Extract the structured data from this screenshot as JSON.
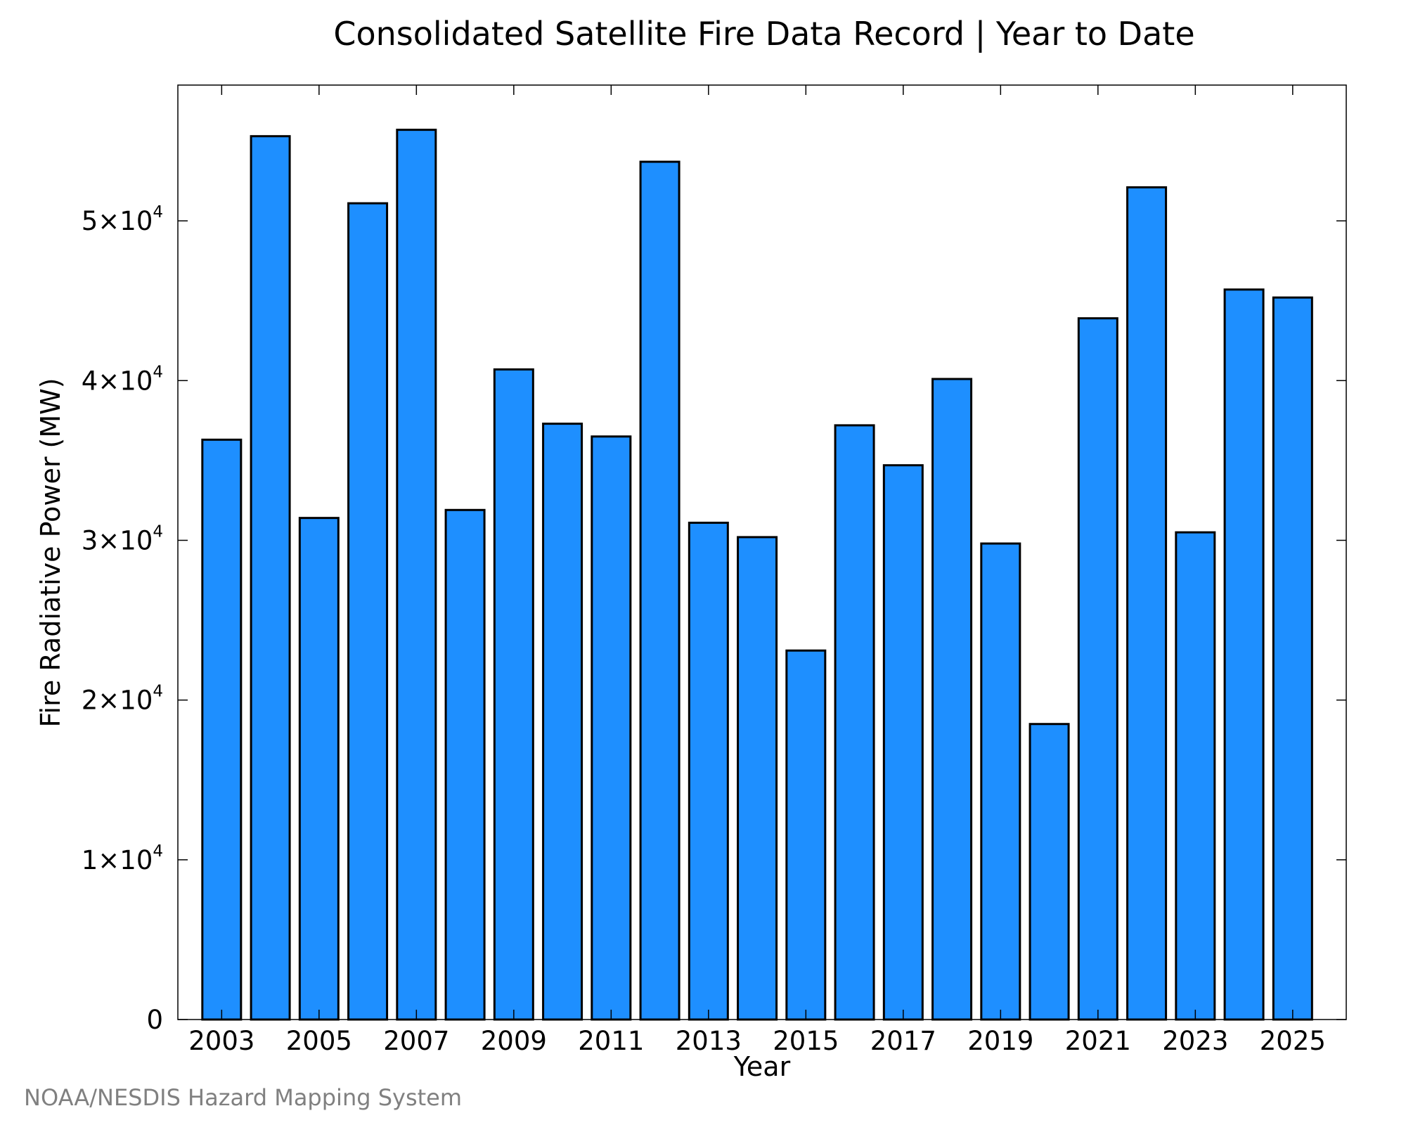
{
  "chart_data": {
    "type": "bar",
    "title": "Consolidated Satellite Fire Data Record | Year to Date",
    "xlabel": "Year",
    "ylabel": "Fire Radiative Power (MW)",
    "ylim": [
      0,
      58500
    ],
    "xlim": [
      2002.1,
      2026.1
    ],
    "grid": false,
    "bar_color": "#1E8FFF",
    "bar_edge_color": "#000000",
    "x": [
      2003,
      2004,
      2005,
      2006,
      2007,
      2008,
      2009,
      2010,
      2011,
      2012,
      2013,
      2014,
      2015,
      2016,
      2017,
      2018,
      2019,
      2020,
      2021,
      2022,
      2023,
      2024,
      2025
    ],
    "values": [
      36300,
      55300,
      31400,
      51100,
      55700,
      31900,
      40700,
      37300,
      36500,
      53700,
      31100,
      30200,
      23100,
      37200,
      34700,
      40100,
      29800,
      18500,
      43900,
      52100,
      30500,
      45700,
      45200
    ],
    "x_ticks": [
      {
        "value": 2003,
        "label": "2003"
      },
      {
        "value": 2005,
        "label": "2005"
      },
      {
        "value": 2007,
        "label": "2007"
      },
      {
        "value": 2009,
        "label": "2009"
      },
      {
        "value": 2011,
        "label": "2011"
      },
      {
        "value": 2013,
        "label": "2013"
      },
      {
        "value": 2015,
        "label": "2015"
      },
      {
        "value": 2017,
        "label": "2017"
      },
      {
        "value": 2019,
        "label": "2019"
      },
      {
        "value": 2021,
        "label": "2021"
      },
      {
        "value": 2023,
        "label": "2023"
      },
      {
        "value": 2025,
        "label": "2025"
      }
    ],
    "y_ticks": [
      {
        "value": 0,
        "mantissa": "0",
        "exponent": ""
      },
      {
        "value": 10000,
        "mantissa": "1×10",
        "exponent": "4"
      },
      {
        "value": 20000,
        "mantissa": "2×10",
        "exponent": "4"
      },
      {
        "value": 30000,
        "mantissa": "3×10",
        "exponent": "4"
      },
      {
        "value": 40000,
        "mantissa": "4×10",
        "exponent": "4"
      },
      {
        "value": 50000,
        "mantissa": "5×10",
        "exponent": "4"
      }
    ]
  },
  "credit": "NOAA/NESDIS Hazard Mapping System"
}
